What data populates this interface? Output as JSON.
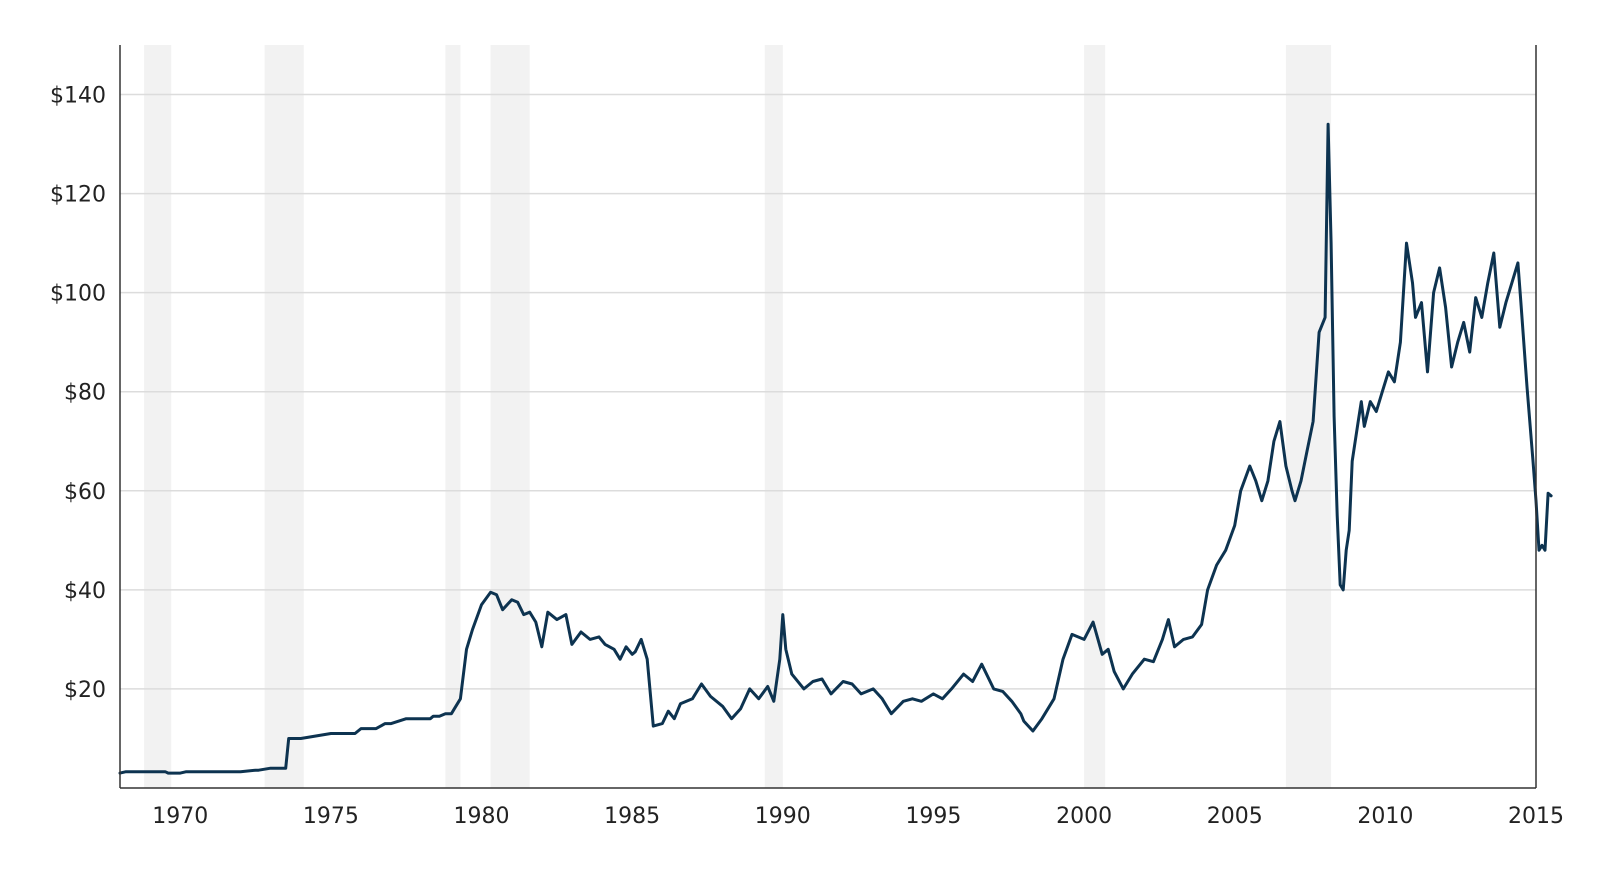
{
  "chart_data": {
    "type": "line",
    "title": "",
    "xlabel": "",
    "ylabel": "",
    "xlim": [
      1968.0,
      2015.0
    ],
    "ylim": [
      0,
      150
    ],
    "y_tick_values": [
      20,
      40,
      60,
      80,
      100,
      120,
      140
    ],
    "y_tick_labels": [
      "$20",
      "$40",
      "$60",
      "$80",
      "$100",
      "$120",
      "$140"
    ],
    "x_tick_values": [
      1970,
      1975,
      1980,
      1985,
      1990,
      1995,
      2000,
      2005,
      2010,
      2015
    ],
    "x_tick_labels": [
      "1970",
      "1975",
      "1980",
      "1985",
      "1990",
      "1995",
      "2000",
      "2005",
      "2010",
      "2015"
    ],
    "grid": "horizontal",
    "legend": "none",
    "line_color": "#0d3350",
    "shade_color": "#f2f2f2",
    "recession_periods": [
      [
        1968.8,
        1969.7
      ],
      [
        1972.8,
        1974.1
      ],
      [
        1978.8,
        1979.3
      ],
      [
        1980.3,
        1981.6
      ],
      [
        1989.4,
        1990.0
      ],
      [
        2000.0,
        2000.7
      ],
      [
        2006.7,
        2008.2
      ]
    ],
    "series": [
      {
        "x": [
          1968.0,
          1968.2,
          1969.0,
          1969.5,
          1969.6,
          1970.0,
          1970.2,
          1971.0,
          1972.0,
          1972.5,
          1972.6,
          1973.0,
          1973.2,
          1973.5,
          1973.6,
          1974.0,
          1975.0,
          1975.2,
          1975.5,
          1975.8,
          1976.0,
          1976.5,
          1976.8,
          1977.0,
          1977.5,
          1978.0,
          1978.2,
          1978.3,
          1978.4,
          1978.5,
          1978.6,
          1978.8,
          1979.0,
          1979.1,
          1979.3,
          1979.5,
          1979.7,
          1980.0,
          1980.3,
          1980.5,
          1980.7,
          1981.0,
          1981.2,
          1981.4,
          1981.6,
          1981.8,
          1982.0,
          1982.2,
          1982.5,
          1982.8,
          1983.0,
          1983.3,
          1983.6,
          1983.9,
          1984.1,
          1984.4,
          1984.6,
          1984.8,
          1985.0,
          1985.1,
          1985.3,
          1985.5,
          1985.7,
          1986.0,
          1986.2,
          1986.4,
          1986.6,
          1987.0,
          1987.3,
          1987.6,
          1988.0,
          1988.3,
          1988.6,
          1988.9,
          1989.2,
          1989.5,
          1989.7,
          1989.9,
          1990.0,
          1990.1,
          1990.3,
          1990.7,
          1991.0,
          1991.3,
          1991.6,
          1992.0,
          1992.3,
          1992.6,
          1993.0,
          1993.3,
          1993.6,
          1994.0,
          1994.3,
          1994.6,
          1995.0,
          1995.3,
          1995.6,
          1996.0,
          1996.3,
          1996.6,
          1997.0,
          1997.3,
          1997.6,
          1997.9,
          1998.0,
          1998.3,
          1998.6,
          1999.0,
          1999.3,
          1999.6,
          2000.0,
          2000.3,
          2000.6,
          2000.8,
          2001.0,
          2001.3,
          2001.6,
          2002.0,
          2002.3,
          2002.6,
          2002.8,
          2003.0,
          2003.3,
          2003.6,
          2003.9,
          2004.1,
          2004.4,
          2004.7,
          2005.0,
          2005.2,
          2005.5,
          2005.7,
          2005.9,
          2006.1,
          2006.3,
          2006.5,
          2006.7,
          2006.9,
          2007.0,
          2007.2,
          2007.4,
          2007.6,
          2007.8,
          2008.0,
          2008.1,
          2008.2,
          2008.3,
          2008.4,
          2008.5,
          2008.6,
          2008.7,
          2008.8,
          2008.9,
          2009.0,
          2009.1,
          2009.2,
          2009.3,
          2009.5,
          2009.7,
          2009.9,
          2010.1,
          2010.3,
          2010.5,
          2010.7,
          2010.9,
          2011.0,
          2011.2,
          2011.4,
          2011.6,
          2011.8,
          2012.0,
          2012.2,
          2012.4,
          2012.6,
          2012.8,
          2013.0,
          2013.2,
          2013.4,
          2013.6,
          2013.8,
          2014.0,
          2014.2,
          2014.4,
          2014.5,
          2014.7,
          2014.9,
          2015.0,
          2015.1,
          2015.2,
          2015.3,
          2015.4,
          2015.5
        ],
        "y": [
          3.0,
          3.3,
          3.3,
          3.3,
          3.0,
          3.0,
          3.3,
          3.3,
          3.3,
          3.6,
          3.6,
          4.0,
          4.0,
          4.0,
          10.0,
          10.0,
          11.0,
          11.0,
          11.0,
          11.0,
          12.0,
          12.0,
          13.0,
          13.0,
          14.0,
          14.0,
          14.0,
          14.0,
          14.5,
          14.5,
          14.5,
          15.0,
          15.0,
          16.0,
          18.0,
          28.0,
          32.0,
          37.0,
          39.5,
          39.0,
          36.0,
          38.0,
          37.5,
          35.0,
          35.5,
          33.5,
          28.5,
          35.5,
          34.0,
          35.0,
          29.0,
          31.5,
          30.0,
          30.5,
          29.0,
          28.0,
          26.0,
          28.5,
          27.0,
          27.5,
          30.0,
          26.0,
          12.5,
          13.0,
          15.5,
          14.0,
          17.0,
          18.0,
          21.0,
          18.5,
          16.5,
          14.0,
          16.0,
          20.0,
          18.0,
          20.5,
          17.5,
          26.0,
          35.0,
          28.0,
          23.0,
          20.0,
          21.5,
          22.0,
          19.0,
          21.5,
          21.0,
          19.0,
          20.0,
          18.0,
          15.0,
          17.5,
          18.0,
          17.5,
          19.0,
          18.0,
          20.0,
          23.0,
          21.5,
          25.0,
          20.0,
          19.5,
          17.5,
          15.0,
          13.5,
          11.5,
          14.0,
          18.0,
          26.0,
          31.0,
          30.0,
          33.5,
          27.0,
          28.0,
          23.5,
          20.0,
          23.0,
          26.0,
          25.5,
          30.0,
          34.0,
          28.5,
          30.0,
          30.5,
          33.0,
          40.0,
          45.0,
          48.0,
          53.0,
          60.0,
          65.0,
          62.0,
          58.0,
          62.0,
          70.0,
          74.0,
          65.0,
          60.0,
          58.0,
          62.0,
          68.0,
          74.0,
          92.0,
          95.0,
          134.0,
          110.0,
          75.0,
          55.0,
          41.0,
          40.0,
          48.0,
          52.0,
          66.0,
          70.0,
          74.0,
          78.0,
          73.0,
          78.0,
          76.0,
          80.0,
          84.0,
          82.0,
          90.0,
          110.0,
          102.0,
          95.0,
          98.0,
          84.0,
          100.0,
          105.0,
          97.0,
          85.0,
          90.0,
          94.0,
          88.0,
          99.0,
          95.0,
          102.0,
          108.0,
          93.0,
          98.0,
          102.0,
          106.0,
          98.0,
          81.0,
          66.0,
          58.0,
          48.0,
          49.0,
          48.0,
          59.5,
          59.0
        ]
      }
    ]
  }
}
